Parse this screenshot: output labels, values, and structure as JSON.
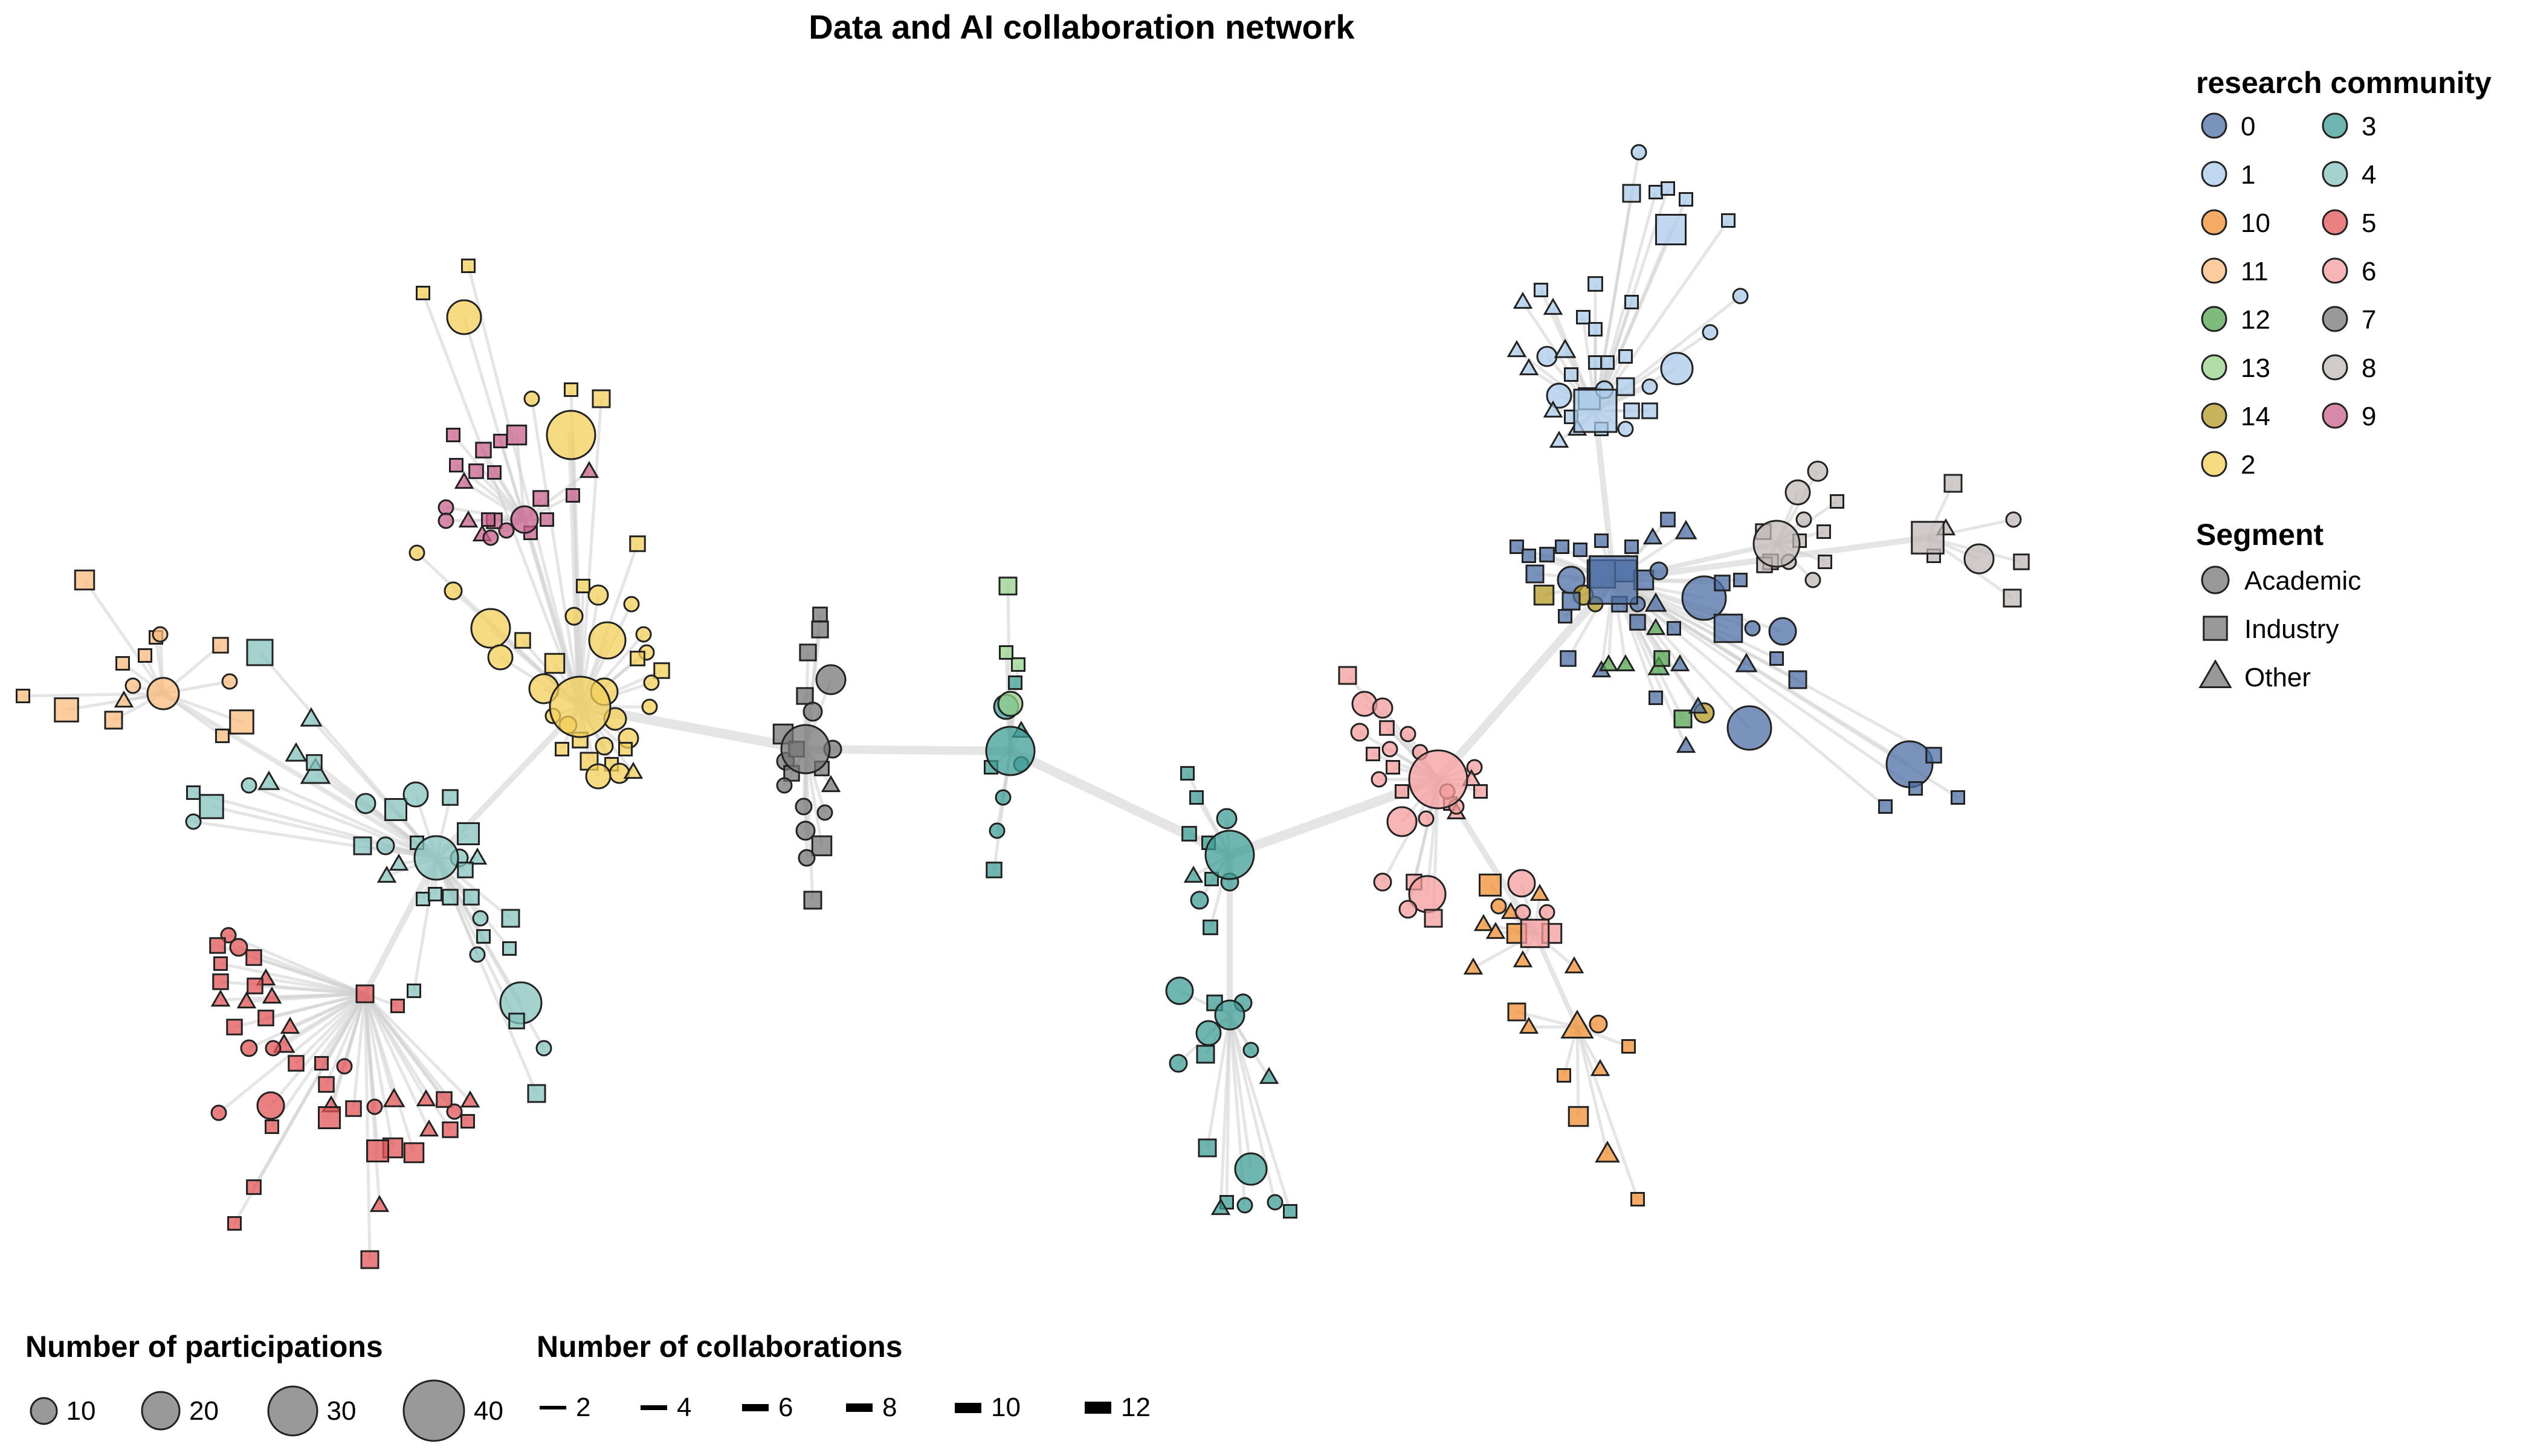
{
  "title": "Data and AI collaboration network",
  "legend_community": {
    "title": "research community",
    "items": [
      {
        "label": "0",
        "color": "#4e6fa5"
      },
      {
        "label": "3",
        "color": "#3f9c95"
      },
      {
        "label": "1",
        "color": "#a9cbe9"
      },
      {
        "label": "4",
        "color": "#86c3bd"
      },
      {
        "label": "10",
        "color": "#ef8f33"
      },
      {
        "label": "5",
        "color": "#e15457"
      },
      {
        "label": "11",
        "color": "#f8bb7d"
      },
      {
        "label": "6",
        "color": "#f49c9c"
      },
      {
        "label": "12",
        "color": "#55a453"
      },
      {
        "label": "7",
        "color": "#777777"
      },
      {
        "label": "13",
        "color": "#95d18b"
      },
      {
        "label": "8",
        "color": "#c0b8b6"
      },
      {
        "label": "14",
        "color": "#b49a23"
      },
      {
        "label": "9",
        "color": "#c9628d"
      },
      {
        "label": "2",
        "color": "#f4cf5a"
      }
    ]
  },
  "legend_segment": {
    "title": "Segment",
    "items": [
      {
        "label": "Academic",
        "shape": "circle"
      },
      {
        "label": "Industry",
        "shape": "square"
      },
      {
        "label": "Other",
        "shape": "triangle"
      }
    ]
  },
  "legend_participations": {
    "title": "Number of participations",
    "items": [
      {
        "label": "10",
        "value": 10
      },
      {
        "label": "20",
        "value": 20
      },
      {
        "label": "30",
        "value": 30
      },
      {
        "label": "40",
        "value": 40
      }
    ]
  },
  "legend_collaborations": {
    "title": "Number of collaborations",
    "items": [
      {
        "label": "2",
        "value": 2
      },
      {
        "label": "4",
        "value": 4
      },
      {
        "label": "6",
        "value": 6
      },
      {
        "label": "8",
        "value": 8
      },
      {
        "label": "10",
        "value": 10
      },
      {
        "label": "12",
        "value": 12
      }
    ]
  }
}
